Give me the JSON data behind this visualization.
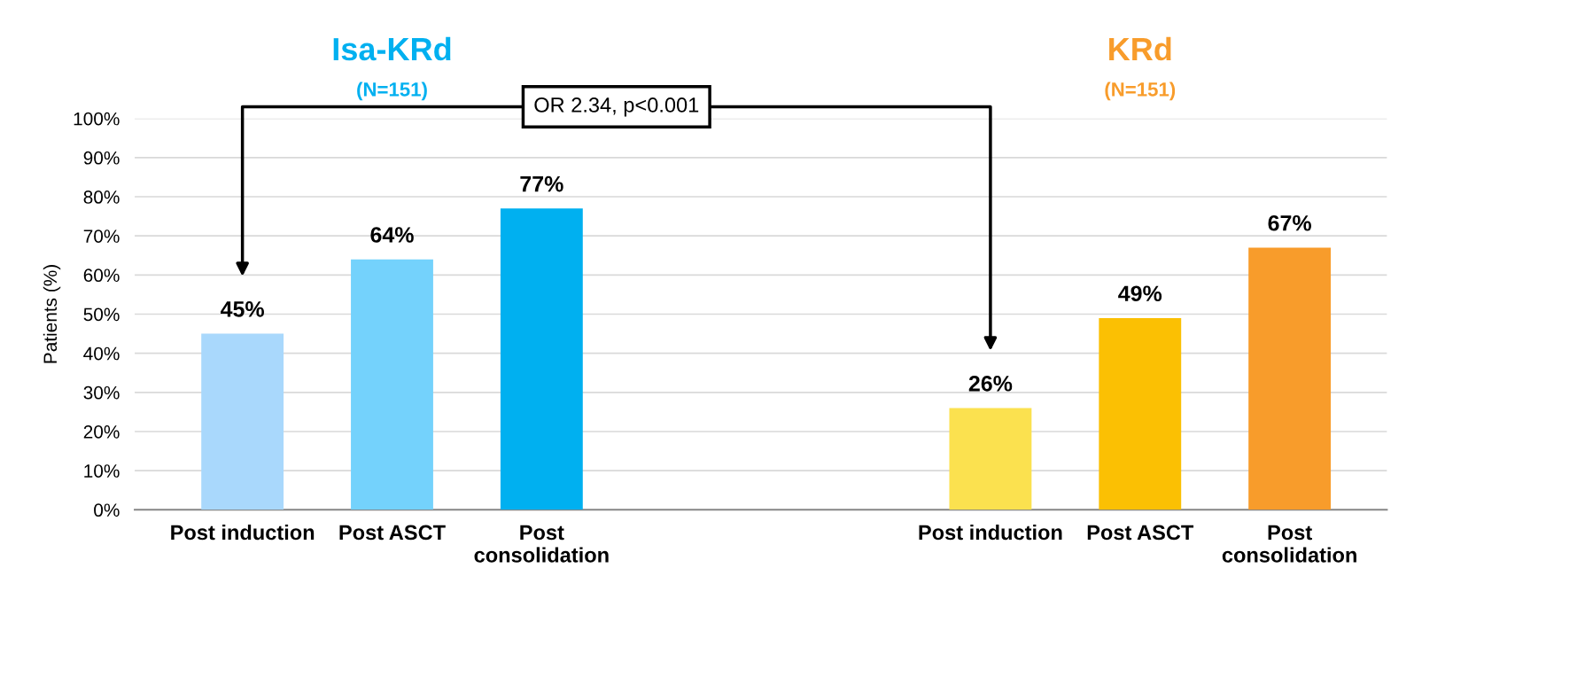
{
  "chart_data": {
    "type": "bar",
    "categories": [
      "Post induction",
      "Post ASCT",
      "Post\nconsolidation",
      null,
      null,
      "Post induction",
      "Post ASCT",
      "Post\nconsolidation"
    ],
    "values": [
      45,
      64,
      77,
      null,
      null,
      26,
      49,
      67
    ],
    "colors": [
      "#a9d8fc",
      "#74d2fc",
      "#00b0f0",
      null,
      null,
      "#fbe14f",
      "#fbc003",
      "#f89c2b"
    ],
    "value_labels": [
      "45%",
      "64%",
      "77%",
      null,
      null,
      "26%",
      "49%",
      "67%"
    ],
    "ylabel": "Patients (%)",
    "ylim": [
      0,
      100
    ],
    "yticks": [
      {
        "value": 0,
        "label": "0%"
      },
      {
        "value": 10,
        "label": "10%"
      },
      {
        "value": 20,
        "label": "20%"
      },
      {
        "value": 30,
        "label": "30%"
      },
      {
        "value": 40,
        "label": "40%"
      },
      {
        "value": 50,
        "label": "50%"
      },
      {
        "value": 60,
        "label": "60%"
      },
      {
        "value": 70,
        "label": "70%"
      },
      {
        "value": 80,
        "label": "80%"
      },
      {
        "value": 90,
        "label": "90%"
      },
      {
        "value": 100,
        "label": "100%"
      }
    ],
    "grid": "y",
    "annotations": [
      "Isa-KRd",
      "(N=151)",
      "KRd",
      "(N=151)",
      "OR 2.34, p<0.001"
    ]
  }
}
